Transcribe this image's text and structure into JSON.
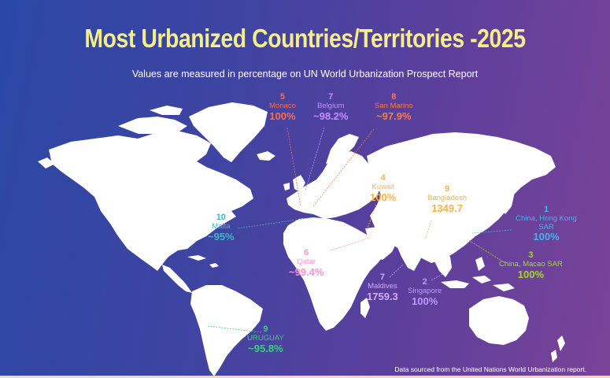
{
  "title": "Most Urbanized Countries/Territories -2025",
  "subtitle": "Values are measured in percentage on UN World Urbanization Prospect Report",
  "footer": "Data sourced from the United Nations World Urbanization report.",
  "colors": {
    "background_left": "#2b48a6",
    "background_right": "#7a4398",
    "land": "#ffffff",
    "title": "#f3ee8a"
  },
  "labels": [
    {
      "id": "monaco",
      "rank": "5",
      "name": "Monaco",
      "value": "100%",
      "color": "#ff6a4d"
    },
    {
      "id": "belgium",
      "rank": "7",
      "name": "Belgium",
      "value": "~98.2%",
      "color": "#c98cff"
    },
    {
      "id": "san-marino",
      "rank": "8",
      "name": "San Marino",
      "value": "~97.9%",
      "color": "#ff7a3c"
    },
    {
      "id": "kuwait",
      "rank": "4",
      "name": "Kuwait",
      "value": "100%",
      "color": "#ffb347"
    },
    {
      "id": "bangladesh",
      "rank": "9",
      "name": "Bangladesh",
      "value": "1349.7",
      "color": "#f5b24a"
    },
    {
      "id": "hong-kong",
      "rank": "1",
      "name": "China, Hong Kong SAR",
      "value": "100%",
      "color": "#3fb6f0"
    },
    {
      "id": "malta",
      "rank": "10",
      "name": "Malta",
      "value": "~95%",
      "color": "#3fb6c8"
    },
    {
      "id": "qatar",
      "rank": "6",
      "name": "Qatar",
      "value": "~99.4%",
      "color": "#ff8fd0"
    },
    {
      "id": "macao",
      "rank": "3",
      "name": "China, Macao SAR",
      "value": "100%",
      "color": "#a7d630"
    },
    {
      "id": "maldives",
      "rank": "7",
      "name": "Maldives",
      "value": "1759.3",
      "color": "#d6a8ff"
    },
    {
      "id": "singapore",
      "rank": "2",
      "name": "Singapore",
      "value": "100%",
      "color": "#b89cff"
    },
    {
      "id": "uruguay",
      "rank": "9",
      "name": "URUGUAY",
      "value": "~95.8%",
      "color": "#35d27a"
    }
  ]
}
